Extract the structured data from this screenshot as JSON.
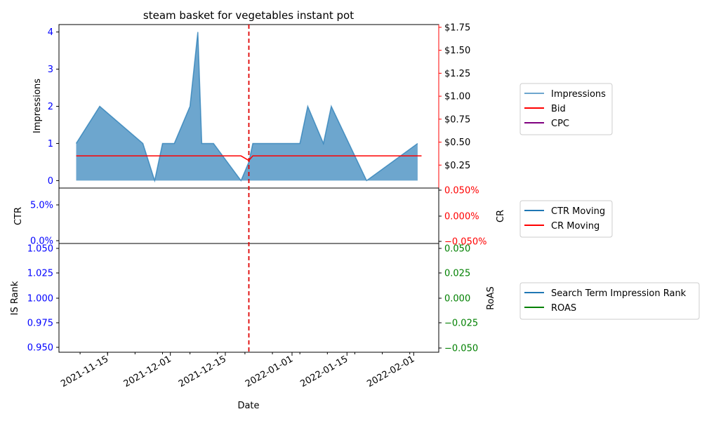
{
  "chart_data": [
    {
      "type": "area",
      "title": "steam basket for vegetables instant pot",
      "xlabel": "",
      "ylabel": "Impressions",
      "ylim": [
        -0.2,
        4.2
      ],
      "yticks": [
        0,
        1,
        2,
        3,
        4
      ],
      "y2label": "",
      "y2lim": [
        0,
        1.78
      ],
      "y2ticks": [
        "$0.25",
        "$0.50",
        "$0.75",
        "$1.00",
        "$1.25",
        "$1.50",
        "$1.75"
      ],
      "y2tick_values": [
        0.25,
        0.5,
        0.75,
        1.0,
        1.25,
        1.5,
        1.75
      ],
      "event_line": "2021-12-21",
      "series": [
        {
          "name": "Impressions",
          "axis": "left",
          "color": "#1f77b4",
          "x": [
            "2021-11-07",
            "2021-11-13",
            "2021-11-24",
            "2021-11-27",
            "2021-11-29",
            "2021-12-02",
            "2021-12-06",
            "2021-12-08",
            "2021-12-09",
            "2021-12-12",
            "2021-12-19",
            "2021-12-21",
            "2021-12-22",
            "2022-01-03",
            "2022-01-05",
            "2022-01-09",
            "2022-01-11",
            "2022-01-20",
            "2022-02-02"
          ],
          "values": [
            1,
            2,
            1,
            0,
            1,
            1,
            2,
            4,
            1,
            1,
            0,
            0.5,
            1,
            1,
            2,
            1,
            2,
            0,
            1
          ]
        },
        {
          "name": "Bid",
          "axis": "right",
          "color": "#ff0000",
          "x": [
            "2021-11-07",
            "2021-12-19",
            "2021-12-21",
            "2021-12-22",
            "2022-02-03"
          ],
          "values": [
            0.35,
            0.35,
            0.3,
            0.35,
            0.35
          ]
        },
        {
          "name": "CPC",
          "axis": "right",
          "color": "#800080",
          "x": [],
          "values": []
        }
      ]
    },
    {
      "type": "line",
      "ylabel": "CTR",
      "yticks": [
        "0.0%",
        "5.0%"
      ],
      "y2label": "CR",
      "y2ticks": [
        "0.050%",
        "0.000%",
        "−0.050%"
      ],
      "series": [
        {
          "name": "CTR Moving",
          "axis": "left",
          "color": "#1f77b4",
          "x": [],
          "values": []
        },
        {
          "name": "CR Moving",
          "axis": "right",
          "color": "#ff0000",
          "x": [],
          "values": []
        }
      ]
    },
    {
      "type": "line",
      "xlabel": "Date",
      "ylabel": "IS Rank",
      "yticks": [
        "0.950",
        "0.975",
        "1.000",
        "1.025",
        "1.050"
      ],
      "y2label": "RoAS",
      "y2ticks": [
        "−0.050",
        "−0.025",
        "0.000",
        "0.025",
        "0.050"
      ],
      "xticks": [
        "2021-11-15",
        "2021-12-01",
        "2021-12-15",
        "2022-01-01",
        "2022-01-15",
        "2022-02-01"
      ],
      "series": [
        {
          "name": "Search Term Impression Rank",
          "axis": "left",
          "color": "#1f77b4",
          "x": [],
          "values": []
        },
        {
          "name": "ROAS",
          "axis": "right",
          "color": "#008000",
          "x": [],
          "values": []
        }
      ]
    }
  ],
  "legends": [
    [
      "Impressions",
      "Bid",
      "CPC"
    ],
    [
      "CTR Moving",
      "CR Moving"
    ],
    [
      "Search Term Impression Rank",
      "ROAS"
    ]
  ]
}
